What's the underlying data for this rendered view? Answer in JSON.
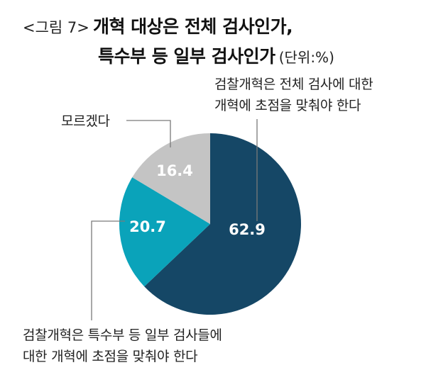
{
  "title": {
    "figure_label": "<그림 7>",
    "line1": "개혁 대상은 전체 검사인가,",
    "line2": "특수부 등 일부 검사인가",
    "unit": "(단위:%)"
  },
  "chart_data": {
    "type": "pie",
    "title": "개혁 대상은 전체 검사인가, 특수부 등 일부 검사인가",
    "unit": "%",
    "slices": [
      {
        "label_lines": [
          "검찰개혁은 전체 검사에 대한",
          "개혁에 초점을 맞춰야 한다"
        ],
        "value": 62.9,
        "value_text": "62.9",
        "color": "#154766"
      },
      {
        "label_lines": [
          "검찰개혁은 특수부 등 일부 검사들에",
          "대한 개혁에 초점을 맞춰야 한다"
        ],
        "value": 20.7,
        "value_text": "20.7",
        "color": "#0aa3ba"
      },
      {
        "label_lines": [
          "모르겠다"
        ],
        "value": 16.4,
        "value_text": "16.4",
        "color": "#c4c4c4"
      }
    ]
  }
}
